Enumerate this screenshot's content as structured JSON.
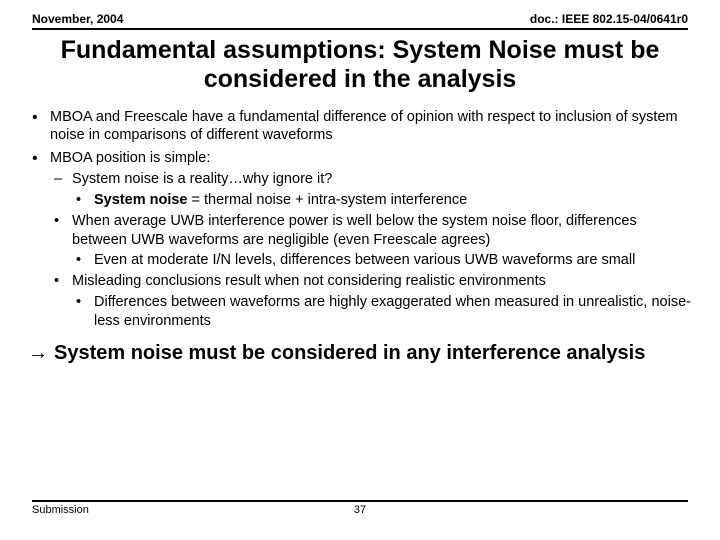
{
  "header": {
    "left": "November, 2004",
    "right": "doc.: IEEE 802.15-04/0641r0"
  },
  "title": "Fundamental assumptions: System Noise must be considered in the analysis",
  "b1": "MBOA and Freescale have a fundamental difference of opinion with respect to inclusion of system noise in comparisons of different waveforms",
  "b2": "MBOA position is simple:",
  "b2a": "System noise is a reality…why ignore it?",
  "b2a1_pre": "System noise",
  "b2a1_post": " = thermal noise + intra-system interference",
  "b2b": "When average UWB interference power is well below the system noise floor, differences between UWB waveforms are negligible (even Freescale agrees)",
  "b2b1": "Even at moderate I/N levels, differences between various UWB waveforms are small",
  "b2c": "Misleading conclusions result when not considering realistic environments",
  "b2c1": "Differences between waveforms are highly exaggerated when measured in unrealistic, noise-less environments",
  "arrow": "→",
  "conclusion": "System noise must be considered in any interference analysis",
  "footer": {
    "left": "Submission",
    "page": "37"
  }
}
